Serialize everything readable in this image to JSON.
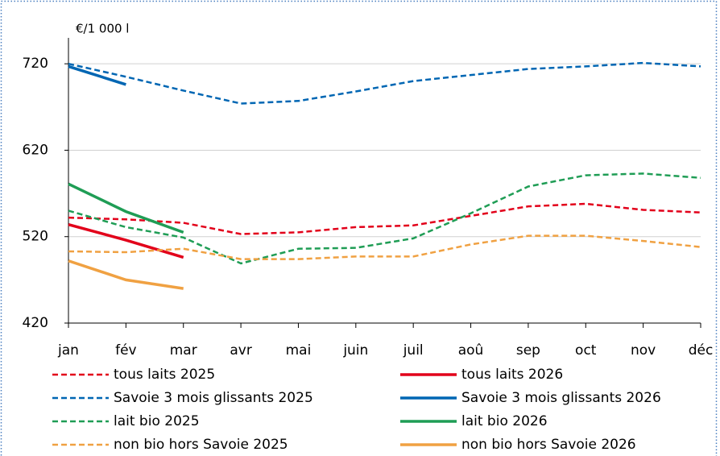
{
  "chart_data": {
    "type": "line",
    "y_label": "€/1 000 l",
    "categories": [
      "jan",
      "fév",
      "mar",
      "avr",
      "mai",
      "juin",
      "juil",
      "aoû",
      "sep",
      "oct",
      "nov",
      "déc"
    ],
    "ylim": [
      420,
      750
    ],
    "yticks": [
      420,
      520,
      620,
      720
    ],
    "grid": true,
    "series": [
      {
        "name": "tous laits 2025",
        "color": "#e2001a",
        "dashed": true,
        "values": [
          542,
          540,
          536,
          523,
          525,
          531,
          533,
          544,
          555,
          558,
          551,
          548
        ]
      },
      {
        "name": "tous laits 2026",
        "color": "#e2001a",
        "dashed": false,
        "values": [
          534,
          516,
          496,
          null,
          null,
          null,
          null,
          null,
          null,
          null,
          null,
          null
        ]
      },
      {
        "name": "Savoie 3 mois glissants 2025",
        "color": "#0066b3",
        "dashed": true,
        "values": [
          720,
          705,
          689,
          674,
          677,
          688,
          700,
          707,
          714,
          717,
          721,
          717
        ]
      },
      {
        "name": "Savoie 3 mois glissants 2026",
        "color": "#0066b3",
        "dashed": false,
        "values": [
          717,
          696,
          null,
          null,
          null,
          null,
          null,
          null,
          null,
          null,
          null,
          null
        ]
      },
      {
        "name": "lait bio 2025",
        "color": "#1f9d55",
        "dashed": true,
        "values": [
          550,
          531,
          519,
          489,
          506,
          507,
          518,
          547,
          578,
          591,
          593,
          588
        ]
      },
      {
        "name": "lait bio 2026",
        "color": "#1f9d55",
        "dashed": false,
        "values": [
          581,
          549,
          525,
          null,
          null,
          null,
          null,
          null,
          null,
          null,
          null,
          null
        ]
      },
      {
        "name": "non bio hors Savoie 2025",
        "color": "#f0a142",
        "dashed": true,
        "values": [
          503,
          502,
          506,
          494,
          494,
          497,
          497,
          511,
          521,
          521,
          515,
          508
        ]
      },
      {
        "name": "non bio hors Savoie 2026",
        "color": "#f0a142",
        "dashed": false,
        "values": [
          492,
          470,
          460,
          null,
          null,
          null,
          null,
          null,
          null,
          null,
          null,
          null
        ]
      }
    ]
  }
}
